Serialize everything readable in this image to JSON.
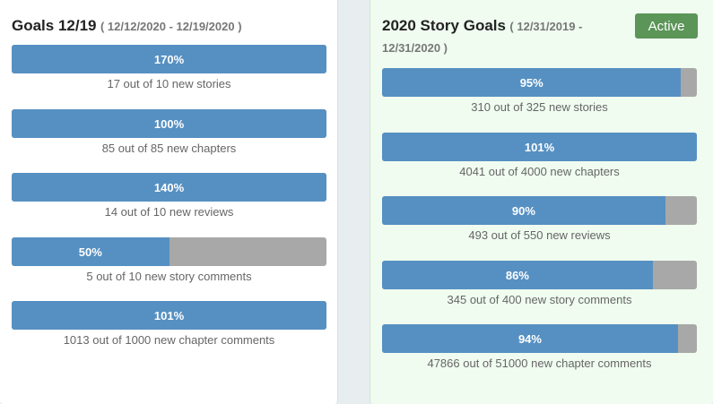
{
  "left_panel": {
    "title": "Goals 12/19",
    "daterange": "( 12/12/2020 - 12/19/2020 )",
    "goals": [
      {
        "percent_label": "170%",
        "progress": 1.0,
        "caption": "17 out of 10 new stories"
      },
      {
        "percent_label": "100%",
        "progress": 1.0,
        "caption": "85 out of 85 new chapters"
      },
      {
        "percent_label": "140%",
        "progress": 1.0,
        "caption": "14 out of 10 new reviews"
      },
      {
        "percent_label": "50%",
        "progress": 0.5,
        "caption": "5 out of 10 new story comments"
      },
      {
        "percent_label": "101%",
        "progress": 1.0,
        "caption": "1013 out of 1000 new chapter comments"
      }
    ]
  },
  "right_panel": {
    "title": "2020 Story Goals",
    "daterange": "( 12/31/2019 - 12/31/2020 )",
    "badge": "Active",
    "goals": [
      {
        "percent_label": "95%",
        "progress": 0.95,
        "caption": "310 out of 325 new stories"
      },
      {
        "percent_label": "101%",
        "progress": 1.0,
        "caption": "4041 out of 4000 new chapters"
      },
      {
        "percent_label": "90%",
        "progress": 0.9,
        "caption": "493 out of 550 new reviews"
      },
      {
        "percent_label": "86%",
        "progress": 0.86,
        "caption": "345 out of 400 new story comments"
      },
      {
        "percent_label": "94%",
        "progress": 0.94,
        "caption": "47866 out of 51000 new chapter comments"
      }
    ]
  },
  "colors": {
    "bar_fill": "#5690c2",
    "bar_track": "#a8a8a8",
    "badge_active": "#5b9557",
    "right_panel_bg": "#f0fcf0"
  }
}
